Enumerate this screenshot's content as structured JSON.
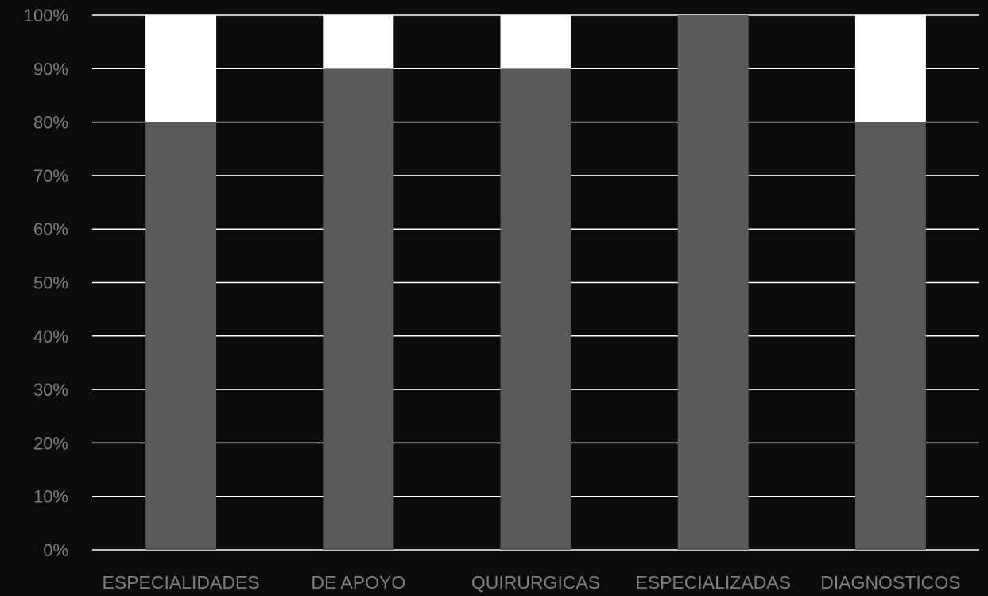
{
  "colors": {
    "background": "#0b0b0b",
    "series_primary": "#595959",
    "series_secondary": "#ffffff",
    "gridline": "#ffffff",
    "label_text": "#7f7f7f"
  },
  "chart_data": {
    "type": "bar",
    "stacked": true,
    "percent": true,
    "categories": [
      "ESPECIALIDADES",
      "DE APOYO",
      "QUIRURGICAS",
      "ESPECIALIZADAS",
      "DIAGNOSTICOS"
    ],
    "series": [
      {
        "values": [
          80,
          90,
          90,
          100,
          80
        ]
      },
      {
        "values": [
          20,
          10,
          10,
          0,
          20
        ]
      }
    ],
    "ylim": [
      0,
      100
    ],
    "yticks": [
      "0%",
      "10%",
      "20%",
      "30%",
      "40%",
      "50%",
      "60%",
      "70%",
      "80%",
      "90%",
      "100%"
    ],
    "title": "",
    "xlabel": "",
    "ylabel": "",
    "grid": true,
    "legend": "none"
  }
}
